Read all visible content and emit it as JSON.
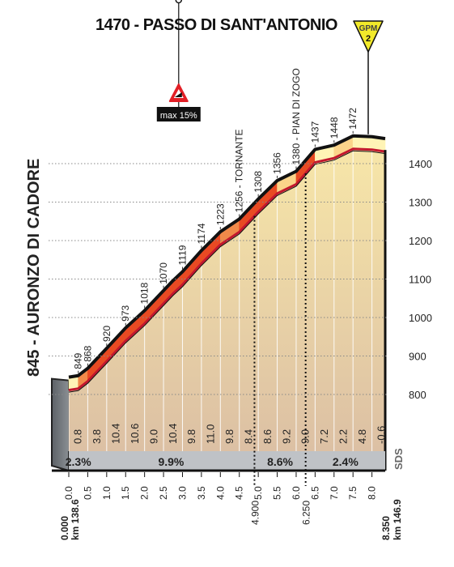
{
  "chart_data": {
    "type": "area",
    "title": "1470 - PASSO DI SANT'ANTONIO",
    "start_label": "845 - AURONZO DI CADORE",
    "gpm": {
      "label": "GPM",
      "category": "2"
    },
    "max_gradient": {
      "label": "max 15%",
      "km": 2.9,
      "altitude": 1110
    },
    "y_ticks": [
      800,
      900,
      1000,
      1100,
      1200,
      1300,
      1400
    ],
    "y_range": [
      730,
      1500
    ],
    "x_ticks": [
      "0.0",
      "0.5",
      "1.0",
      "1.5",
      "2.0",
      "2.5",
      "3.0",
      "3.5",
      "4.0",
      "4.5",
      "5.0",
      "5.5",
      "6.0",
      "6.5",
      "7.0",
      "7.5",
      "8.0"
    ],
    "x_range": [
      0,
      8.35
    ],
    "km_start": {
      "left": "0.000",
      "right": "km 138.6"
    },
    "km_end": {
      "left": "8.350",
      "right": "km 146.9"
    },
    "profile": [
      {
        "km": 0.0,
        "alt": 845
      },
      {
        "km": 0.25,
        "alt": 849
      },
      {
        "km": 0.5,
        "alt": 868
      },
      {
        "km": 1.0,
        "alt": 920
      },
      {
        "km": 1.5,
        "alt": 973
      },
      {
        "km": 2.0,
        "alt": 1018
      },
      {
        "km": 2.5,
        "alt": 1070
      },
      {
        "km": 2.75,
        "alt": 1096
      },
      {
        "km": 3.0,
        "alt": 1119
      },
      {
        "km": 3.5,
        "alt": 1174
      },
      {
        "km": 4.0,
        "alt": 1223
      },
      {
        "km": 4.5,
        "alt": 1256
      },
      {
        "km": 5.0,
        "alt": 1308
      },
      {
        "km": 5.5,
        "alt": 1356
      },
      {
        "km": 6.0,
        "alt": 1380
      },
      {
        "km": 6.5,
        "alt": 1437
      },
      {
        "km": 7.0,
        "alt": 1448
      },
      {
        "km": 7.5,
        "alt": 1472
      },
      {
        "km": 8.0,
        "alt": 1470
      },
      {
        "km": 8.35,
        "alt": 1465
      }
    ],
    "point_labels": [
      {
        "km": 0.25,
        "text": "849"
      },
      {
        "km": 0.5,
        "text": "868"
      },
      {
        "km": 1.0,
        "text": "920"
      },
      {
        "km": 1.5,
        "text": "973"
      },
      {
        "km": 2.0,
        "text": "1018"
      },
      {
        "km": 2.5,
        "text": "1070"
      },
      {
        "km": 3.0,
        "text": "1119"
      },
      {
        "km": 3.5,
        "text": "1174"
      },
      {
        "km": 4.0,
        "text": "1223"
      },
      {
        "km": 4.5,
        "text": "1256 - TORNANTE"
      },
      {
        "km": 5.0,
        "text": "1308"
      },
      {
        "km": 5.5,
        "text": "1356"
      },
      {
        "km": 6.0,
        "text": "1380 - PIAN DI ZOGO"
      },
      {
        "km": 6.5,
        "text": "1437"
      },
      {
        "km": 7.0,
        "text": "1448"
      },
      {
        "km": 7.5,
        "text": "1472"
      }
    ],
    "segment_gradients": [
      "0.8",
      "3.8",
      "10.4",
      "10.6",
      "9.0",
      "10.4",
      "9.8",
      "11.0",
      "9.8",
      "8.4",
      "8.6",
      "9.2",
      "9.0",
      "7.2",
      "2.2",
      "4.8",
      "-0.6"
    ],
    "section_averages": [
      {
        "from": 0.0,
        "to": 0.5,
        "text": "2.3%"
      },
      {
        "from": 0.5,
        "to": 4.9,
        "text": "9.9%"
      },
      {
        "from": 4.9,
        "to": 6.25,
        "text": "8.6%"
      },
      {
        "from": 6.25,
        "to": 8.35,
        "text": "2.4%"
      }
    ],
    "section_marks": [
      {
        "km": 4.9,
        "text": "4.900"
      },
      {
        "km": 6.25,
        "text": "6.250"
      }
    ],
    "brand": "SDS",
    "colors": {
      "steep": "#e84a23",
      "steep_dark": "#d03a1a",
      "mild": "#fff4b6",
      "fill_top": "#f7e6a8",
      "fill_bottom": "#dcc0a4",
      "road": "#c2182e",
      "base_band": "#bfc2c6",
      "wall": "#6e7378",
      "gpm": "#f2ea2a"
    }
  }
}
